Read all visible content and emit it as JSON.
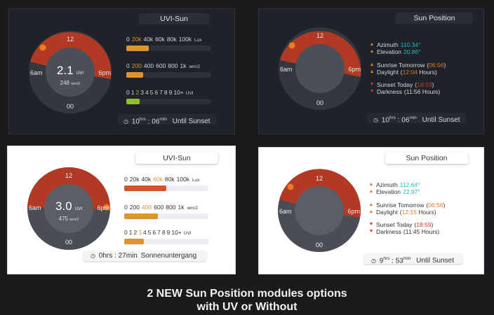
{
  "panels": {
    "uvi_dark": {
      "title": "UVI-Sun",
      "gauge": {
        "top": "12",
        "left": "6am",
        "right": "6pm",
        "bottom": "00",
        "value": "2.1",
        "value_unit": "UVI",
        "sub": "248",
        "sub_unit": "wm/2"
      },
      "lux": {
        "ticks": [
          "0",
          "20k",
          "40k",
          "60k",
          "80k",
          "100k"
        ],
        "unit": "Lux",
        "highlight": "20k",
        "fill": 0.27
      },
      "wm2": {
        "ticks": [
          "0",
          "200",
          "400",
          "600",
          "800",
          "1k"
        ],
        "unit": "wm/2",
        "highlight": "200",
        "fill": 0.2
      },
      "uv": {
        "ticks": [
          "0",
          "1",
          "2",
          "3",
          "4",
          "5",
          "6",
          "7",
          "8",
          "9",
          "10+"
        ],
        "unit": "UVI",
        "highlight": "2",
        "fill": 0.16
      },
      "footer": {
        "hours": "10",
        "hrs_label": "hrs",
        "sep": " : ",
        "mins": "06",
        "min_label": "min",
        "text": "Until Sunset"
      }
    },
    "sun_dark": {
      "title": "Sun Position",
      "gauge": {
        "top": "12",
        "left": "6am",
        "right": "6pm",
        "bottom": "00"
      },
      "azimuth_label": "Azimuth",
      "azimuth": "110.34°",
      "elevation_label": "Elevation",
      "elevation": "20.86°",
      "sunrise_label": "Sunrise Tomorrow",
      "sunrise": "06:56",
      "daylight_label": "Daylight",
      "daylight": "12:04",
      "daylight_unit": "Hours",
      "sunset_label": "Sunset Today",
      "sunset": "18:59",
      "darkness_label": "Darkness",
      "darkness": "(11:56 Hours)",
      "footer": {
        "hours": "10",
        "hrs_label": "hrs",
        "sep": " : ",
        "mins": "06",
        "min_label": "min",
        "text": "Until Sunset"
      }
    },
    "uvi_light": {
      "title": "UVI-Sun",
      "gauge": {
        "top": "12",
        "left": "6am",
        "right": "6pm",
        "bottom": "00",
        "value": "3.0",
        "value_unit": "UVI",
        "sub": "475",
        "sub_unit": "wm/2"
      },
      "lux": {
        "ticks": [
          "0",
          "20k",
          "40k",
          "60k",
          "80k",
          "100k"
        ],
        "unit": "Lux",
        "highlight": "60k",
        "fill": 0.5
      },
      "wm2": {
        "ticks": [
          "0",
          "200",
          "400",
          "600",
          "800",
          "1k"
        ],
        "unit": "wm/2",
        "highlight": "400",
        "fill": 0.4
      },
      "uv": {
        "ticks": [
          "0",
          "1",
          "2",
          "3",
          "4",
          "5",
          "6",
          "7",
          "8",
          "9",
          "10+"
        ],
        "unit": "UVI",
        "highlight": "3",
        "fill": 0.23
      },
      "footer": {
        "hours": "0",
        "hrs_label": "hrs",
        "sep": " : ",
        "mins": "27",
        "min_label": "min",
        "text": "Sonnenuntergang"
      }
    },
    "sun_light": {
      "title": "Sun Position",
      "gauge": {
        "top": "12",
        "left": "6am",
        "right": "6pm",
        "bottom": "00"
      },
      "azimuth_label": "Azimuth",
      "azimuth": "112.64°",
      "elevation_label": "Elevation",
      "elevation": "22.97°",
      "sunrise_label": "Sunrise Tomorrow",
      "sunrise": "06:56",
      "daylight_label": "Daylight",
      "daylight": "12:15",
      "daylight_unit": "Hours",
      "sunset_label": "Sunset Today",
      "sunset": "18:59",
      "darkness_label": "Darkness",
      "darkness": "(11:45 Hours)",
      "footer": {
        "hours": "9",
        "hrs_label": "hrs",
        "sep": " : ",
        "mins": "53",
        "min_label": "min",
        "text": "Until Sunset"
      }
    }
  },
  "caption": {
    "line1": "2 NEW Sun Position modules options",
    "line2": "with UV or Without"
  },
  "colors": {
    "day_arc": "#b23a24",
    "night_arc": "#3a3e46",
    "sun": "#f07a1a",
    "bar_orange": "#e0922e",
    "bar_red": "#d0552b",
    "bar_green": "#8fbf2a",
    "cyan": "#22b8c8"
  },
  "icons": {
    "clock": "clock-icon",
    "sunrise": "sunrise-icon",
    "sunset": "sunset-icon"
  }
}
